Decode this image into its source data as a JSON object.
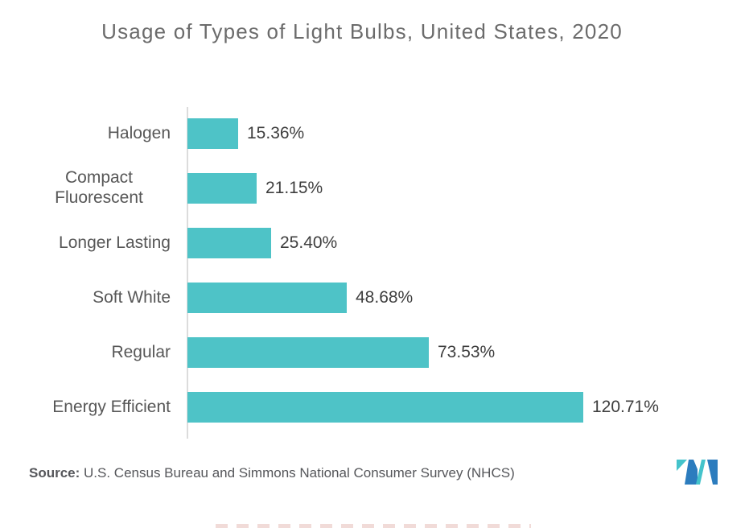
{
  "title": "Usage of Types of Light Bulbs, United States, 2020",
  "source": {
    "label": "Source:",
    "text": " U.S. Census Bureau and Simmons National Consumer Survey (NHCS)"
  },
  "logo": {
    "name": "mordor-intelligence-logo",
    "teal": "#44C3CB",
    "blue": "#2C7CBE"
  },
  "colors": {
    "bar": "#4EC3C7",
    "axis": "#DCDCDC",
    "title_text": "#6B6B6B",
    "category_text": "#575757",
    "value_text": "#3E3E3E",
    "source_text": "#55565A"
  },
  "chart_data": {
    "type": "bar",
    "orientation": "horizontal",
    "title": "Usage of Types of Light Bulbs, United States, 2020",
    "categories": [
      "Halogen",
      "Compact Fluorescent",
      "Longer Lasting",
      "Soft White",
      "Regular",
      "Energy Efficient"
    ],
    "values": [
      15.36,
      21.15,
      25.4,
      48.68,
      73.53,
      120.71
    ],
    "value_labels": [
      "15.36%",
      "21.15%",
      "25.40%",
      "48.68%",
      "73.53%",
      "120.71%"
    ],
    "unit": "%",
    "xlim": [
      0,
      130
    ],
    "grid": false,
    "legend": false,
    "bar_color": "#4EC3C7",
    "value_label_position": "outside-right"
  }
}
